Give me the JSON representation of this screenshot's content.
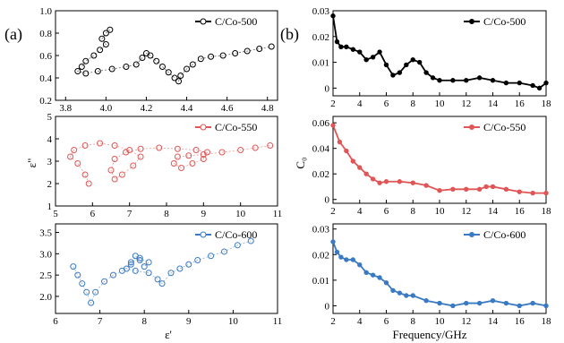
{
  "figure": {
    "panel_a_label": "(a)",
    "panel_b_label": "(b)",
    "a_ylabel": "ε\"",
    "a_xlabel": "ε'",
    "b_ylabel": "C₀",
    "b_xlabel": "Frequency/GHz"
  },
  "chart_data": [
    {
      "type": "scatter",
      "panel": "a-top",
      "legend": "C/Co-500",
      "legend_position": "top-right",
      "color": "#000000",
      "xlim": [
        3.75,
        4.85
      ],
      "ylim": [
        0.2,
        1.0
      ],
      "xticks": [
        "3.8",
        "4.0",
        "4.2",
        "4.4",
        "4.6",
        "4.8"
      ],
      "yticks": [
        "0.2",
        "0.4",
        "0.6",
        "0.8",
        "1.0"
      ],
      "xtick_values": [
        3.8,
        4.0,
        4.2,
        4.4,
        4.6,
        4.8
      ],
      "ytick_values": [
        0.2,
        0.4,
        0.6,
        0.8,
        1.0
      ],
      "points": [
        [
          4.02,
          0.83
        ],
        [
          4.0,
          0.8
        ],
        [
          3.98,
          0.75
        ],
        [
          4.0,
          0.7
        ],
        [
          3.97,
          0.65
        ],
        [
          3.94,
          0.6
        ],
        [
          3.9,
          0.55
        ],
        [
          3.88,
          0.5
        ],
        [
          3.86,
          0.46
        ],
        [
          3.9,
          0.44
        ],
        [
          3.96,
          0.46
        ],
        [
          4.03,
          0.48
        ],
        [
          4.1,
          0.5
        ],
        [
          4.15,
          0.52
        ],
        [
          4.18,
          0.58
        ],
        [
          4.2,
          0.62
        ],
        [
          4.22,
          0.6
        ],
        [
          4.25,
          0.55
        ],
        [
          4.28,
          0.5
        ],
        [
          4.31,
          0.45
        ],
        [
          4.34,
          0.4
        ],
        [
          4.36,
          0.37
        ],
        [
          4.37,
          0.42
        ],
        [
          4.4,
          0.48
        ],
        [
          4.43,
          0.52
        ],
        [
          4.47,
          0.57
        ],
        [
          4.52,
          0.59
        ],
        [
          4.58,
          0.6
        ],
        [
          4.64,
          0.62
        ],
        [
          4.7,
          0.64
        ],
        [
          4.76,
          0.66
        ],
        [
          4.82,
          0.68
        ]
      ]
    },
    {
      "type": "scatter",
      "panel": "a-middle",
      "legend": "C/Co-550",
      "legend_position": "top-right",
      "color": "#e05555",
      "xlim": [
        5,
        11
      ],
      "ylim": [
        1,
        5
      ],
      "xticks": [
        "5",
        "6",
        "7",
        "8",
        "9",
        "10",
        "11"
      ],
      "yticks": [
        "1",
        "2",
        "3",
        "4",
        "5"
      ],
      "xtick_values": [
        5,
        6,
        7,
        8,
        9,
        10,
        11
      ],
      "ytick_values": [
        1,
        2,
        3,
        4,
        5
      ],
      "points": [
        [
          5.9,
          2.0
        ],
        [
          5.8,
          2.4
        ],
        [
          5.6,
          2.9
        ],
        [
          5.4,
          3.2
        ],
        [
          5.5,
          3.5
        ],
        [
          5.8,
          3.7
        ],
        [
          6.2,
          3.8
        ],
        [
          6.6,
          3.7
        ],
        [
          7.0,
          3.5
        ],
        [
          7.3,
          3.2
        ],
        [
          7.1,
          2.8
        ],
        [
          6.8,
          2.4
        ],
        [
          6.6,
          2.2
        ],
        [
          6.5,
          2.6
        ],
        [
          6.6,
          3.1
        ],
        [
          6.9,
          3.4
        ],
        [
          7.3,
          3.55
        ],
        [
          7.8,
          3.6
        ],
        [
          8.3,
          3.55
        ],
        [
          8.8,
          3.5
        ],
        [
          9.1,
          3.4
        ],
        [
          9.0,
          3.1
        ],
        [
          8.7,
          2.9
        ],
        [
          8.4,
          2.7
        ],
        [
          8.2,
          2.9
        ],
        [
          8.3,
          3.2
        ],
        [
          8.6,
          3.25
        ],
        [
          9.0,
          3.3
        ],
        [
          9.5,
          3.4
        ],
        [
          10.0,
          3.5
        ],
        [
          10.4,
          3.6
        ],
        [
          10.8,
          3.7
        ]
      ]
    },
    {
      "type": "scatter",
      "panel": "a-bottom",
      "legend": "C/Co-600",
      "legend_position": "top-right",
      "color": "#3a7ac4",
      "xlim": [
        6,
        11
      ],
      "ylim": [
        1.6,
        3.7
      ],
      "xticks": [
        "6",
        "7",
        "8",
        "9",
        "10",
        "11"
      ],
      "yticks": [
        "2.0",
        "2.5",
        "3.0",
        "3.5"
      ],
      "xtick_values": [
        6,
        7,
        8,
        9,
        10,
        11
      ],
      "ytick_values": [
        2.0,
        2.5,
        3.0,
        3.5
      ],
      "points": [
        [
          6.4,
          2.7
        ],
        [
          6.5,
          2.5
        ],
        [
          6.6,
          2.3
        ],
        [
          6.7,
          2.1
        ],
        [
          6.8,
          1.85
        ],
        [
          6.9,
          2.1
        ],
        [
          7.1,
          2.35
        ],
        [
          7.3,
          2.5
        ],
        [
          7.5,
          2.6
        ],
        [
          7.7,
          2.75
        ],
        [
          7.8,
          2.95
        ],
        [
          7.9,
          2.85
        ],
        [
          8.0,
          2.7
        ],
        [
          8.1,
          2.8
        ],
        [
          7.9,
          2.9
        ],
        [
          7.7,
          2.8
        ],
        [
          7.6,
          2.65
        ],
        [
          7.8,
          2.6
        ],
        [
          8.1,
          2.55
        ],
        [
          8.3,
          2.4
        ],
        [
          8.4,
          2.3
        ],
        [
          8.6,
          2.55
        ],
        [
          8.8,
          2.65
        ],
        [
          9.0,
          2.75
        ],
        [
          9.2,
          2.85
        ],
        [
          9.5,
          2.95
        ],
        [
          9.8,
          3.05
        ],
        [
          10.1,
          3.2
        ],
        [
          10.4,
          3.3
        ]
      ]
    },
    {
      "type": "line",
      "panel": "b-top",
      "legend": "C/Co-500",
      "legend_position": "top-right",
      "color": "#000000",
      "xlim": [
        2,
        18
      ],
      "ylim": [
        -0.003,
        0.03
      ],
      "xticks": [
        "2",
        "4",
        "6",
        "8",
        "10",
        "12",
        "14",
        "16",
        "18"
      ],
      "yticks": [
        "0",
        "0.01",
        "0.02",
        "0.03"
      ],
      "xtick_values": [
        2,
        4,
        6,
        8,
        10,
        12,
        14,
        16,
        18
      ],
      "ytick_values": [
        0,
        0.01,
        0.02,
        0.03
      ],
      "x": [
        2,
        2.3,
        2.6,
        3,
        3.5,
        4,
        4.5,
        5,
        5.5,
        6,
        6.5,
        7,
        7.5,
        8,
        8.5,
        9,
        9.5,
        10,
        11,
        12,
        13,
        14,
        15,
        16,
        17,
        17.5,
        18
      ],
      "y": [
        0.028,
        0.018,
        0.016,
        0.016,
        0.015,
        0.014,
        0.011,
        0.012,
        0.014,
        0.009,
        0.005,
        0.006,
        0.009,
        0.011,
        0.01,
        0.006,
        0.004,
        0.003,
        0.003,
        0.003,
        0.004,
        0.003,
        0.002,
        0.002,
        0.001,
        0.0,
        0.002
      ]
    },
    {
      "type": "line",
      "panel": "b-middle",
      "legend": "C/Co-550",
      "legend_position": "top-right",
      "color": "#e05555",
      "xlim": [
        2,
        18
      ],
      "ylim": [
        -0.003,
        0.065
      ],
      "xticks": [
        "2",
        "4",
        "6",
        "8",
        "10",
        "12",
        "14",
        "16",
        "18"
      ],
      "yticks": [
        "0",
        "0.02",
        "0.04",
        "0.06"
      ],
      "xtick_values": [
        2,
        4,
        6,
        8,
        10,
        12,
        14,
        16,
        18
      ],
      "ytick_values": [
        0,
        0.02,
        0.04,
        0.06
      ],
      "x": [
        2,
        2.5,
        3,
        3.5,
        4,
        4.5,
        5,
        5.5,
        6,
        7,
        8,
        9,
        10,
        11,
        12,
        13,
        13.5,
        14,
        15,
        16,
        17,
        18
      ],
      "y": [
        0.058,
        0.045,
        0.038,
        0.03,
        0.025,
        0.02,
        0.016,
        0.013,
        0.014,
        0.014,
        0.013,
        0.011,
        0.007,
        0.008,
        0.008,
        0.008,
        0.01,
        0.01,
        0.008,
        0.006,
        0.005,
        0.005
      ]
    },
    {
      "type": "line",
      "panel": "b-bottom",
      "legend": "C/Co-600",
      "legend_position": "top-right",
      "color": "#3a7ac4",
      "xlim": [
        2,
        18
      ],
      "ylim": [
        -0.003,
        0.032
      ],
      "xticks": [
        "2",
        "4",
        "6",
        "8",
        "10",
        "12",
        "14",
        "16",
        "18"
      ],
      "yticks": [
        "0",
        "0.01",
        "0.02",
        "0.03"
      ],
      "xtick_values": [
        2,
        4,
        6,
        8,
        10,
        12,
        14,
        16,
        18
      ],
      "ytick_values": [
        0,
        0.01,
        0.02,
        0.03
      ],
      "x": [
        2,
        2.3,
        2.6,
        3,
        3.5,
        4,
        4.5,
        5,
        5.5,
        6,
        6.5,
        7,
        7.5,
        8,
        9,
        10,
        11,
        12,
        13,
        14,
        15,
        16,
        17,
        18
      ],
      "y": [
        0.025,
        0.021,
        0.019,
        0.018,
        0.018,
        0.016,
        0.013,
        0.012,
        0.011,
        0.009,
        0.006,
        0.005,
        0.004,
        0.004,
        0.002,
        0.001,
        0.0,
        0.001,
        0.001,
        0.002,
        0.001,
        0.0,
        0.001,
        0.0
      ]
    }
  ]
}
